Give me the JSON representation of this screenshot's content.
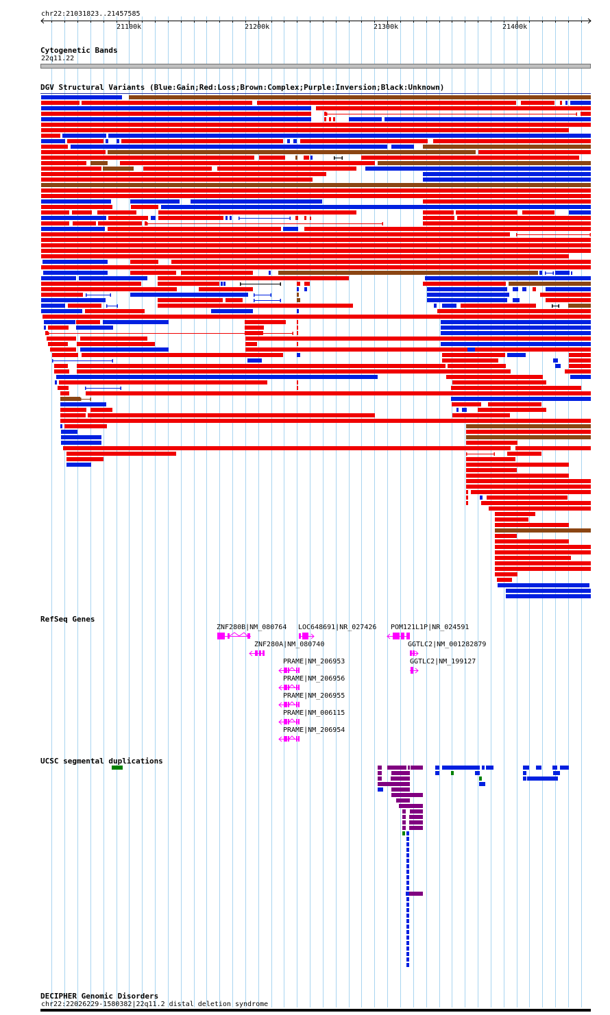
{
  "region": {
    "label": "chr22:21031823..21457585",
    "start": 21031823,
    "end": 21457585
  },
  "ruler": {
    "ticks": [
      {
        "pos": 21100000,
        "label": "21100k"
      },
      {
        "pos": 21200000,
        "label": "21200k"
      },
      {
        "pos": 21300000,
        "label": "21300k"
      },
      {
        "pos": 21400000,
        "label": "21400k"
      }
    ]
  },
  "tracks": {
    "cytoband": {
      "title": "Cytogenetic Bands",
      "band_label": "22q11.22",
      "band_color": "#bfbfbf"
    },
    "dgv": {
      "title": "DGV Structural Variants (Blue:Gain;Red:Loss;Brown:Complex;Purple:Inversion;Black:Unknown)",
      "colors": {
        "gain": "#0020e0",
        "loss": "#f00000",
        "complex": "#8b4513",
        "inversion": "#800080",
        "unknown": "#000000"
      }
    },
    "refseq": {
      "title": "RefSeq Genes",
      "color": "#ff00ff",
      "genes": [
        {
          "label": "ZNF280B|NM_080764"
        },
        {
          "label": "LOC648691|NR_027426"
        },
        {
          "label": "POM121L1P|NR_024591"
        },
        {
          "label": "ZNF280A|NM_080740"
        },
        {
          "label": "GGTLC2|NM_001282879"
        },
        {
          "label": "PRAME|NM_206953"
        },
        {
          "label": "GGTLC2|NM_199127"
        },
        {
          "label": "PRAME|NM_206956"
        },
        {
          "label": "PRAME|NM_206955"
        },
        {
          "label": "PRAME|NM_006115"
        },
        {
          "label": "PRAME|NM_206954"
        }
      ]
    },
    "segdup": {
      "title": "UCSC segmental duplications",
      "colors": {
        "purple": "#800080",
        "blue": "#0020e0",
        "green": "#008000"
      }
    },
    "decipher": {
      "title": "DECIPHER Genomic Disorders",
      "feature_label": "chr22:22026229-1580382|22q11.2 distal deletion syndrome"
    }
  }
}
